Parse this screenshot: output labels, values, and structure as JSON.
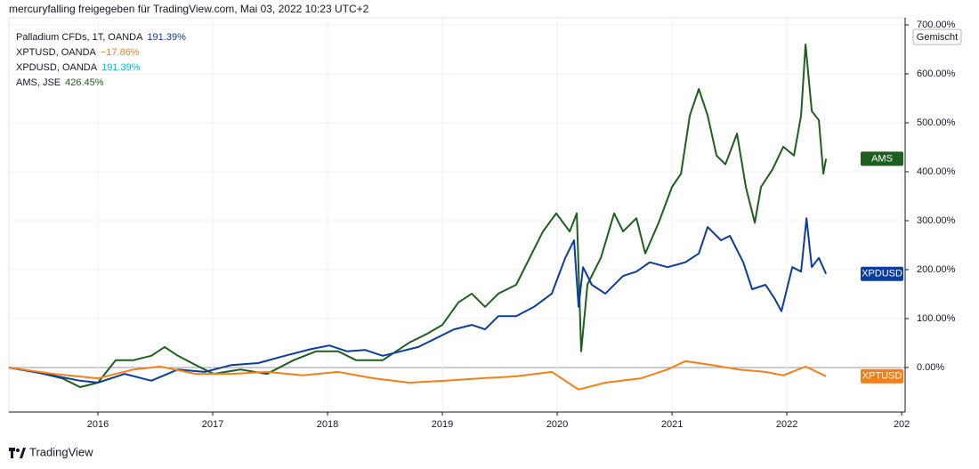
{
  "header": "mercuryfalling freigegeben für TradingView.com, Mai 03, 2022 10:23 UTC+2",
  "footer": "TradingView",
  "scale_button": "Gemischt",
  "chart_data": {
    "type": "line",
    "legend_entries": [
      {
        "name": "Palladium CFDs, 1T, OANDA",
        "value_label": "191.39%",
        "color": "#0d3a9e"
      },
      {
        "name": "XPTUSD, OANDA",
        "value_label": "−17.86%",
        "color": "#f57f17"
      },
      {
        "name": "XPDUSD, OANDA",
        "value_label": "191.39%",
        "color": "#00bcd4"
      },
      {
        "name": "AMS, JSE",
        "value_label": "426.45%",
        "color": "#1b5e20"
      }
    ],
    "series": [
      {
        "name": "AMS",
        "color": "#1e5e1e",
        "x": [
          2015.225,
          2015.457,
          2015.69,
          2015.845,
          2016,
          2016.155,
          2016.31,
          2016.465,
          2016.581,
          2016.698,
          2016.853,
          2017.008,
          2017.24,
          2017.473,
          2017.705,
          2017.899,
          2018.093,
          2018.248,
          2018.481,
          2018.713,
          2018.868,
          2019.0,
          2019.14,
          2019.256,
          2019.372,
          2019.488,
          2019.643,
          2019.76,
          2019.876,
          2019.992,
          2020.109,
          2020.171,
          2020.209,
          2020.264,
          2020.38,
          2020.496,
          2020.574,
          2020.69,
          2020.767,
          2020.884,
          2021.0,
          2021.078,
          2021.155,
          2021.233,
          2021.31,
          2021.388,
          2021.465,
          2021.566,
          2021.643,
          2021.721,
          2021.775,
          2021.876,
          2021.969,
          2022.062,
          2022.124,
          2022.163,
          2022.217,
          2022.279,
          2022.318,
          2022.341
        ],
        "values": [
          0,
          -9,
          -22,
          -40,
          -31,
          15,
          15,
          24,
          42,
          24,
          5,
          -13,
          -4,
          -13,
          15,
          33,
          33,
          15,
          15,
          51,
          69,
          87,
          133,
          151,
          124,
          151,
          169,
          224,
          278,
          315,
          278,
          315,
          33,
          170,
          224,
          315,
          278,
          305,
          233,
          296,
          369,
          396,
          515,
          569,
          515,
          433,
          415,
          478,
          369,
          296,
          369,
          405,
          451,
          433,
          515,
          660,
          524,
          505,
          396,
          426.45
        ]
      },
      {
        "name": "XPDUSD",
        "color": "#0b3c9e",
        "x": [
          2015.225,
          2015.535,
          2015.845,
          2016,
          2016.233,
          2016.465,
          2016.698,
          2016.93,
          2017.163,
          2017.395,
          2017.628,
          2017.86,
          2018.016,
          2018.171,
          2018.326,
          2018.481,
          2018.636,
          2018.791,
          2018.946,
          2019.101,
          2019.256,
          2019.372,
          2019.488,
          2019.643,
          2019.798,
          2019.953,
          2020.07,
          2020.147,
          2020.186,
          2020.225,
          2020.302,
          2020.419,
          2020.574,
          2020.69,
          2020.806,
          2020.961,
          2021.116,
          2021.233,
          2021.31,
          2021.426,
          2021.504,
          2021.62,
          2021.698,
          2021.814,
          2021.891,
          2021.953,
          2022.047,
          2022.124,
          2022.171,
          2022.217,
          2022.279,
          2022.341
        ],
        "values": [
          0,
          -13,
          -27,
          -31,
          -13,
          -27,
          -4,
          -9,
          5,
          9,
          24,
          38,
          45,
          33,
          36,
          24,
          33,
          42,
          60,
          78,
          87,
          78,
          105,
          105,
          124,
          151,
          224,
          260,
          124,
          205,
          169,
          151,
          187,
          196,
          215,
          205,
          215,
          233,
          287,
          260,
          269,
          215,
          160,
          169,
          142,
          115,
          205,
          196,
          305,
          205,
          224,
          191.39
        ]
      },
      {
        "name": "XPTUSD",
        "color": "#f57f17",
        "x": [
          2015.225,
          2015.612,
          2016,
          2016.31,
          2016.543,
          2016.853,
          2017.163,
          2017.473,
          2017.783,
          2018.093,
          2018.403,
          2018.713,
          2019.023,
          2019.333,
          2019.643,
          2019.953,
          2020.186,
          2020.419,
          2020.729,
          2020.961,
          2021.116,
          2021.349,
          2021.581,
          2021.814,
          2021.969,
          2022.163,
          2022.341
        ],
        "values": [
          0,
          -13,
          -22,
          -4,
          2,
          -13,
          -13,
          -9,
          -16,
          -9,
          -22,
          -31,
          -27,
          -22,
          -18,
          -9,
          -45,
          -31,
          -22,
          -4,
          13,
          5,
          -4,
          -9,
          -16,
          2,
          -17.86
        ]
      }
    ],
    "xlim": [
      2015.225,
      2023.03
    ],
    "xticks": [
      2016,
      2017,
      2018,
      2019,
      2020,
      2021,
      2022,
      {
        "value": 2023,
        "label": "202"
      }
    ],
    "ylim": [
      -91,
      714.5
    ],
    "yticks": [
      {
        "value": 0,
        "label": "0.00%"
      },
      {
        "value": 100,
        "label": "100.00%"
      },
      {
        "value": 200,
        "label": "200.00%"
      },
      {
        "value": 300,
        "label": "300.00%"
      },
      {
        "value": 400,
        "label": "400.00%"
      },
      {
        "value": 500,
        "label": "500.00%"
      },
      {
        "value": 600,
        "label": "600.00%"
      },
      {
        "value": 700,
        "label": "700.00%"
      }
    ],
    "grid": true
  }
}
